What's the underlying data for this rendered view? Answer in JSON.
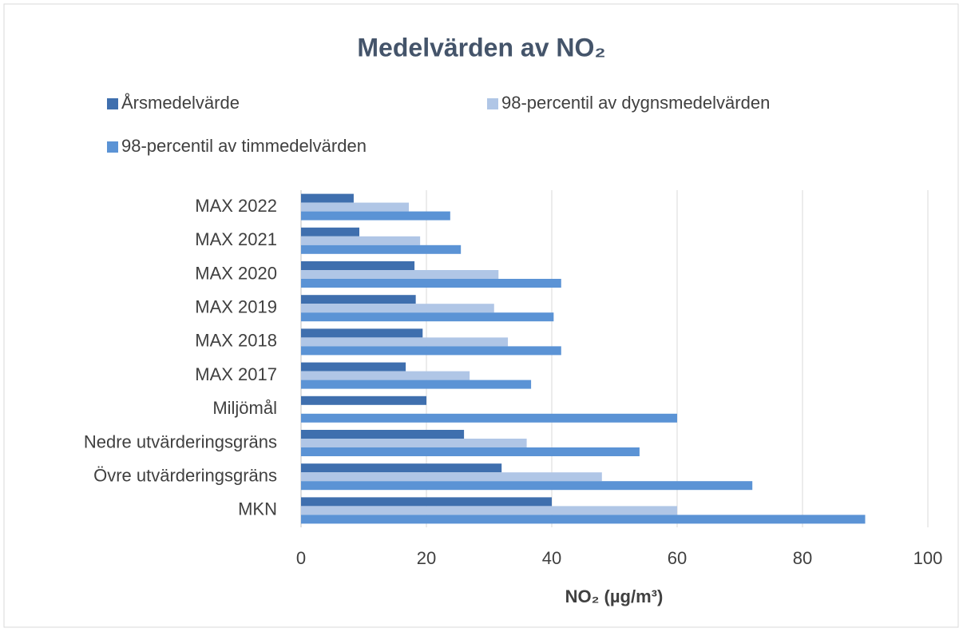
{
  "chart_data": {
    "type": "barh",
    "title": "Medelvärden av NO₂",
    "x_label": "NO₂ (µg/m³)",
    "categories": [
      "MAX 2022",
      "MAX 2021",
      "MAX 2020",
      "MAX 2019",
      "MAX 2018",
      "MAX 2017",
      "Miljömål",
      "Nedre utvärderingsgräns",
      "Övre utvärderingsgräns",
      "MKN"
    ],
    "series": [
      {
        "name": "Årsmedelvärde",
        "color": "#3f6fae",
        "values": [
          8.4,
          9.3,
          18.1,
          18.3,
          19.4,
          16.7,
          20,
          26,
          32,
          40
        ]
      },
      {
        "name": "98-percentil av dygnsmedelvärden",
        "color": "#b0c6e6",
        "values": [
          17.2,
          19,
          31.5,
          30.8,
          33,
          26.9,
          null,
          36,
          48,
          60
        ]
      },
      {
        "name": "98-percentil av timmedelvärden",
        "color": "#5b93d5",
        "values": [
          23.8,
          25.5,
          41.5,
          40.3,
          41.5,
          36.7,
          60,
          54,
          72,
          90
        ]
      }
    ],
    "xlim": [
      0,
      100
    ],
    "xticks": [
      0,
      20,
      40,
      60,
      80,
      100
    ],
    "grid": true,
    "legend": "top"
  }
}
